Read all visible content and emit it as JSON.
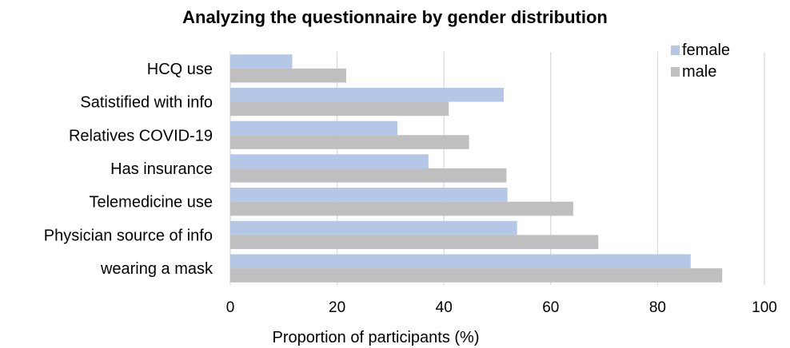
{
  "chart_data": {
    "type": "bar",
    "orientation": "horizontal",
    "title": "Analyzing the questionnaire by gender distribution",
    "xlabel": "Proportion of participants (%)",
    "ylabel": "",
    "xlim": [
      0,
      100
    ],
    "xticks": [
      0,
      20,
      40,
      60,
      80,
      100
    ],
    "grid": true,
    "legend": "top-right",
    "categories": [
      "HCQ use",
      "Satistified with info",
      "Relatives COVID-19",
      "Has insurance",
      "Telemedicine use",
      "Physician source of info",
      "wearing a mask "
    ],
    "series": [
      {
        "name": "female",
        "color": "#b4c7e7",
        "values": [
          11.6,
          51.2,
          31.3,
          37.1,
          51.9,
          53.7,
          86.2
        ]
      },
      {
        "name": "male",
        "color": "#bfbfbf",
        "values": [
          21.7,
          40.9,
          44.7,
          51.7,
          64.2,
          68.9,
          92.1
        ]
      }
    ]
  }
}
